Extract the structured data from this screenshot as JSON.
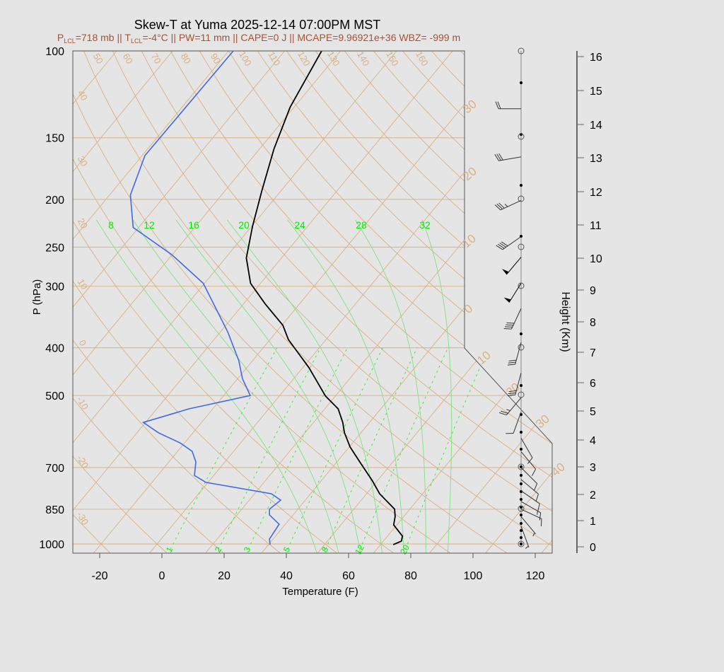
{
  "title": "Skew-T at Yuma 2025-12-14 07:00PM MST",
  "stats": [
    {
      "base": "P",
      "sub": "LCL",
      "text": "=718 mb || "
    },
    {
      "base": "T",
      "sub": "LCL",
      "text": "=-4°C || PW=11 mm || CAPE=0 J || MCAPE=9.96921e+36 WBZ= -999 m"
    }
  ],
  "colors": {
    "temperature": "#000000",
    "dewpoint": "#4169e1",
    "isotherm": "#d9b083",
    "moist_adiabat": "#7fe07f",
    "mixing_ratio": "#33ee33",
    "stats_text": "#a9502f"
  },
  "chart_data": {
    "type": "skew-t",
    "title": "Skew-T at Yuma 2025-12-14 07:00PM MST",
    "ylabel": "P (hPa)",
    "xlabel": "Temperature (F)",
    "y2label": "Height (Km)",
    "y_scale": "log",
    "ylim": [
      1043,
      100
    ],
    "pressure_ticks": [
      "100",
      "150",
      "200",
      "250",
      "300",
      "400",
      "500",
      "700",
      "850",
      "1000"
    ],
    "temperature_ticks": [
      "-20",
      "0",
      "20",
      "40",
      "60",
      "80",
      "100",
      "120"
    ],
    "height_ticks": [
      "0",
      "1",
      "2",
      "3",
      "4",
      "5",
      "6",
      "7",
      "8",
      "9",
      "10",
      "11",
      "12",
      "13",
      "14",
      "15",
      "16"
    ],
    "dry_adiabat_labels_top": [
      "50",
      "60",
      "70",
      "80",
      "90",
      "100",
      "110",
      "120",
      "130",
      "140",
      "150",
      "160"
    ],
    "dry_adiabat_labels_left": [
      "40",
      "30",
      "20",
      "10",
      "0",
      "-10",
      "-20",
      "-30"
    ],
    "isotherm_labels_right": [
      "30",
      "20",
      "10",
      "0",
      "10",
      "20",
      "30",
      "40"
    ],
    "moist_adiabat_labels": [
      "8",
      "12",
      "16",
      "20",
      "24",
      "28",
      "32"
    ],
    "mixing_ratio_labels": [
      "1",
      "2",
      "3",
      "5",
      "8",
      "12",
      "20"
    ],
    "temperature_profile_F": [
      [
        1003,
        72.1
      ],
      [
        987,
        73.8
      ],
      [
        964,
        72.8
      ],
      [
        915,
        67.0
      ],
      [
        879,
        65.2
      ],
      [
        850,
        63.1
      ],
      [
        791,
        54.2
      ],
      [
        745,
        48.5
      ],
      [
        686,
        40.0
      ],
      [
        636,
        32.3
      ],
      [
        595,
        26.7
      ],
      [
        567,
        23.4
      ],
      [
        532,
        18.3
      ],
      [
        501,
        10.8
      ],
      [
        439,
        -2.0
      ],
      [
        385,
        -16.1
      ],
      [
        360,
        -21.7
      ],
      [
        326,
        -33.0
      ],
      [
        296,
        -43.2
      ],
      [
        263,
        -51.3
      ],
      [
        227,
        -57.7
      ],
      [
        192,
        -64.2
      ],
      [
        158,
        -71.4
      ],
      [
        130,
        -77.3
      ],
      [
        100,
        -82.1
      ]
    ],
    "dewpoint_profile_F": [
      [
        1003,
        32.5
      ],
      [
        977,
        30.8
      ],
      [
        912,
        30.0
      ],
      [
        873,
        24.4
      ],
      [
        850,
        22.9
      ],
      [
        815,
        24.1
      ],
      [
        791,
        19.4
      ],
      [
        750,
        -4.7
      ],
      [
        726,
        -10.2
      ],
      [
        682,
        -13.3
      ],
      [
        649,
        -17.3
      ],
      [
        624,
        -23.4
      ],
      [
        595,
        -33.1
      ],
      [
        567,
        -40.7
      ],
      [
        532,
        -29.7
      ],
      [
        500,
        -13.5
      ],
      [
        462,
        -20.5
      ],
      [
        425,
        -26.4
      ],
      [
        372,
        -37.5
      ],
      [
        296,
        -58.4
      ],
      [
        259,
        -76.1
      ],
      [
        228,
        -95.8
      ],
      [
        196,
        -105.3
      ],
      [
        163,
        -111.1
      ],
      [
        100,
        -110.5
      ]
    ],
    "wind_barbs": [
      {
        "p": 131,
        "dir": 270,
        "kt": 20
      },
      {
        "p": 164,
        "dir": 260,
        "kt": 30
      },
      {
        "p": 201,
        "dir": 245,
        "kt": 35
      },
      {
        "p": 238,
        "dir": 235,
        "kt": 40
      },
      {
        "p": 262,
        "dir": 220,
        "kt": 50
      },
      {
        "p": 296,
        "dir": 212,
        "kt": 50
      },
      {
        "p": 333,
        "dir": 205,
        "kt": 40
      },
      {
        "p": 390,
        "dir": 195,
        "kt": 30
      },
      {
        "p": 450,
        "dir": 195,
        "kt": 30
      },
      {
        "p": 505,
        "dir": 220,
        "kt": 25
      },
      {
        "p": 540,
        "dir": 200,
        "kt": 10
      },
      {
        "p": 610,
        "dir": 150,
        "kt": 10
      },
      {
        "p": 650,
        "dir": 140,
        "kt": 10
      },
      {
        "p": 700,
        "dir": 135,
        "kt": 10
      },
      {
        "p": 740,
        "dir": 130,
        "kt": 10
      },
      {
        "p": 780,
        "dir": 125,
        "kt": 10
      },
      {
        "p": 820,
        "dir": 120,
        "kt": 15
      },
      {
        "p": 850,
        "dir": 115,
        "kt": 10
      },
      {
        "p": 880,
        "dir": 140,
        "kt": 5
      },
      {
        "p": 920,
        "dir": 160,
        "kt": 5
      }
    ]
  }
}
